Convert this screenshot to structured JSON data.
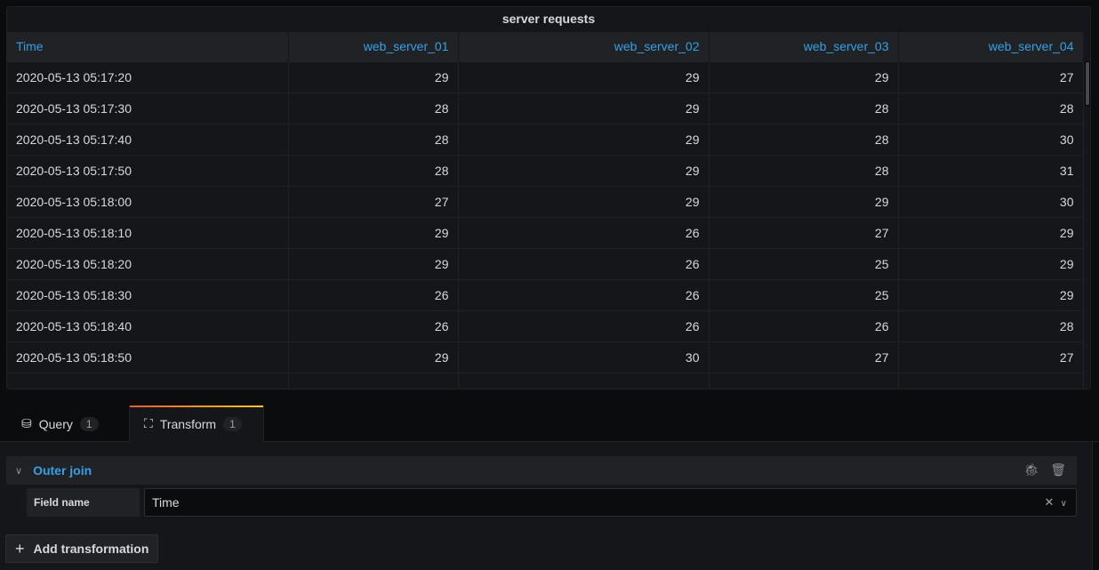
{
  "panel": {
    "title": "server requests",
    "columns": [
      "Time",
      "web_server_01",
      "web_server_02",
      "web_server_03",
      "web_server_04"
    ],
    "rows": [
      [
        "2020-05-13 05:17:20",
        "29",
        "29",
        "29",
        "27"
      ],
      [
        "2020-05-13 05:17:30",
        "28",
        "29",
        "28",
        "28"
      ],
      [
        "2020-05-13 05:17:40",
        "28",
        "29",
        "28",
        "30"
      ],
      [
        "2020-05-13 05:17:50",
        "28",
        "29",
        "28",
        "31"
      ],
      [
        "2020-05-13 05:18:00",
        "27",
        "29",
        "29",
        "30"
      ],
      [
        "2020-05-13 05:18:10",
        "29",
        "26",
        "27",
        "29"
      ],
      [
        "2020-05-13 05:18:20",
        "29",
        "26",
        "25",
        "29"
      ],
      [
        "2020-05-13 05:18:30",
        "26",
        "26",
        "25",
        "29"
      ],
      [
        "2020-05-13 05:18:40",
        "26",
        "26",
        "26",
        "28"
      ],
      [
        "2020-05-13 05:18:50",
        "29",
        "30",
        "27",
        "27"
      ]
    ]
  },
  "tabs": [
    {
      "label": "Query",
      "count": "1",
      "icon": "database-icon"
    },
    {
      "label": "Transform",
      "count": "1",
      "icon": "transform-icon",
      "active": true
    }
  ],
  "transform": {
    "name": "Outer join",
    "field_label": "Field name",
    "field_value": "Time",
    "add_label": "Add transformation"
  }
}
